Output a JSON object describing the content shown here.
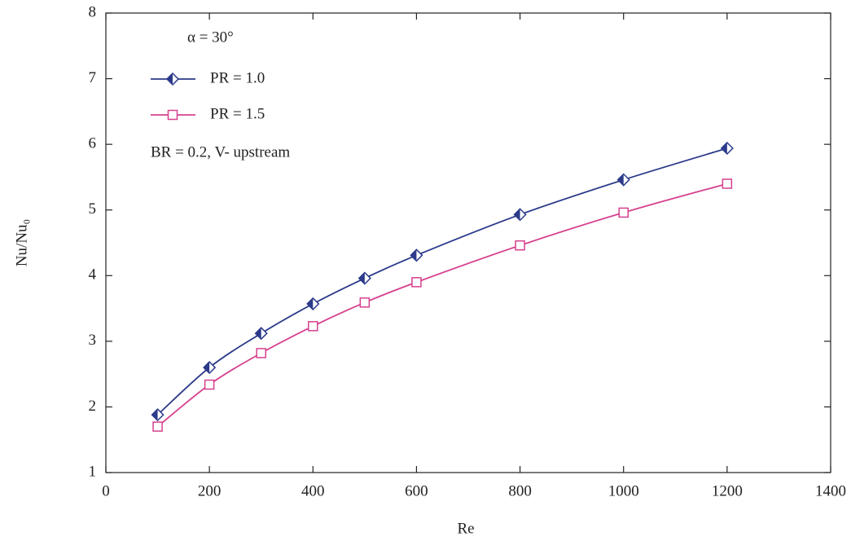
{
  "chart_data": {
    "type": "line",
    "x_label": "Re",
    "y_label": "Nu/Nu₀",
    "annotations": [
      "α = 30°",
      "BR = 0.2, V- upstream"
    ],
    "x": [
      100,
      200,
      300,
      400,
      500,
      600,
      800,
      1000,
      1200
    ],
    "series": [
      {
        "name": "PR = 1.0",
        "color": "#2b3a8a",
        "marker": "diamond",
        "values": [
          1.88,
          2.6,
          3.12,
          3.57,
          3.96,
          4.31,
          4.93,
          5.46,
          5.94
        ]
      },
      {
        "name": "PR = 1.5",
        "color": "#d6418f",
        "marker": "square",
        "values": [
          1.7,
          2.34,
          2.82,
          3.23,
          3.59,
          3.9,
          4.46,
          4.96,
          5.4
        ]
      }
    ],
    "xlim": [
      0,
      1400
    ],
    "xticks": [
      0,
      200,
      400,
      600,
      800,
      1000,
      1200,
      1400
    ],
    "ylim": [
      1,
      8
    ],
    "yticks": [
      1,
      2,
      3,
      4,
      5,
      6,
      7,
      8
    ],
    "grid": false
  }
}
